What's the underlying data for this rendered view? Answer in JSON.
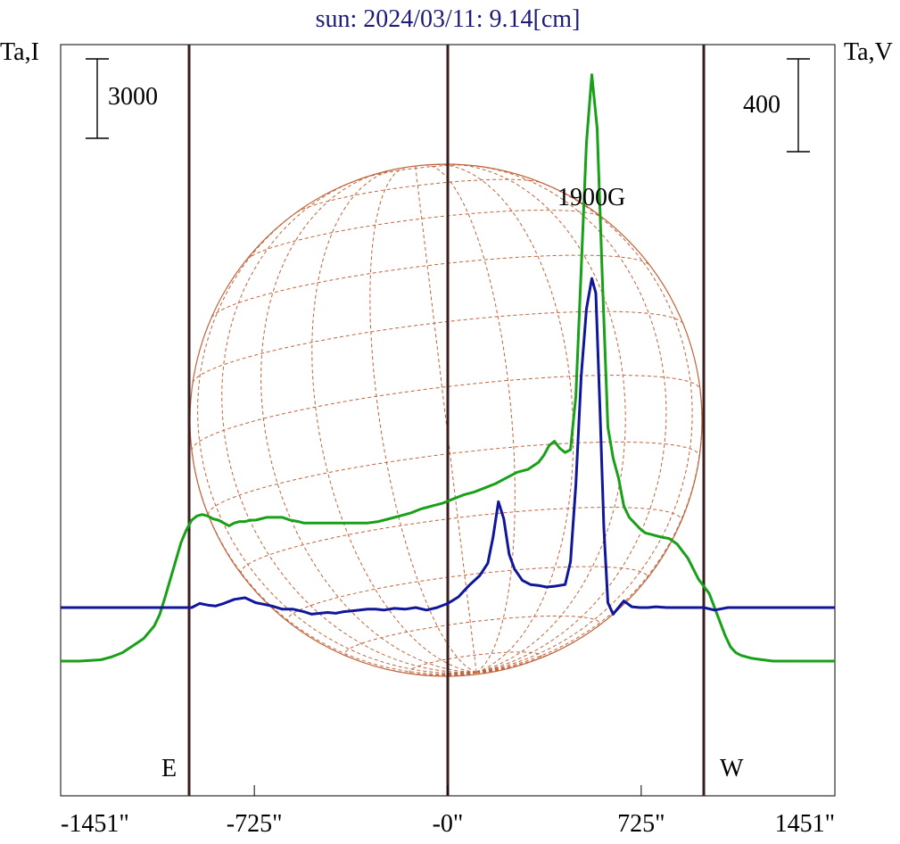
{
  "chart_data": {
    "type": "line",
    "title": "sun: 2024/03/11: 9.14[cm]",
    "left_axis_label": "Ta,I",
    "right_axis_label": "Ta,V",
    "left_scale_bar_label": "3000",
    "right_scale_bar_label": "400",
    "annotation": "1900G",
    "east_label": "E",
    "west_label": "W",
    "x_tick_labels": [
      "-1451\"",
      "-725\"",
      "-0\"",
      "725\"",
      "1451\""
    ],
    "x_tick_values": [
      -1451,
      -725,
      0,
      725,
      1451
    ],
    "xlim": [
      -1451,
      1451
    ],
    "solar_limb_x": [
      -965,
      965
    ],
    "colors": {
      "title": "#1c1c78",
      "intensity": "#10169a",
      "polarization": "#18a018",
      "limb_lines": "#3a1e1e",
      "sun_grid": "#c0643c",
      "text": "#000000"
    },
    "series": [
      {
        "key": "intensity",
        "stroke": "#10169a",
        "x": [
          -1451,
          -1300,
          -1200,
          -1100,
          -1030,
          -990,
          -960,
          -930,
          -900,
          -870,
          -840,
          -800,
          -760,
          -720,
          -690,
          -660,
          -620,
          -580,
          -540,
          -510,
          -480,
          -450,
          -420,
          -390,
          -360,
          -330,
          -300,
          -270,
          -240,
          -200,
          -160,
          -120,
          -80,
          -40,
          0,
          40,
          80,
          120,
          150,
          170,
          190,
          210,
          230,
          250,
          280,
          310,
          340,
          370,
          400,
          420,
          440,
          460,
          480,
          500,
          520,
          540,
          555,
          570,
          585,
          600,
          620,
          640,
          660,
          690,
          720,
          750,
          780,
          820,
          860,
          900,
          960,
          1000,
          1050,
          1100,
          1200,
          1300,
          1400,
          1451
        ],
        "y": [
          0,
          0,
          0,
          0,
          0,
          0,
          0,
          5,
          3,
          2,
          5,
          10,
          12,
          6,
          4,
          2,
          -2,
          -2,
          -5,
          -8,
          -7,
          -6,
          -7,
          -5,
          -4,
          -3,
          -2,
          -2,
          -3,
          -1,
          -2,
          0,
          -3,
          0,
          5,
          13,
          27,
          39,
          54,
          86,
          129,
          108,
          65,
          47,
          33,
          28,
          27,
          25,
          26,
          27,
          28,
          56,
          150,
          282,
          364,
          401,
          383,
          246,
          97,
          6,
          -8,
          0,
          8,
          1,
          0,
          0,
          1,
          0,
          0,
          0,
          0,
          -3,
          0,
          0,
          0,
          0,
          0,
          0
        ]
      },
      {
        "key": "polarization",
        "stroke": "#18a018",
        "x": [
          -1451,
          -1380,
          -1300,
          -1260,
          -1220,
          -1180,
          -1140,
          -1100,
          -1080,
          -1060,
          -1040,
          -1020,
          -1000,
          -980,
          -960,
          -940,
          -920,
          -900,
          -880,
          -860,
          -840,
          -820,
          -800,
          -780,
          -760,
          -740,
          -720,
          -700,
          -680,
          -650,
          -620,
          -590,
          -560,
          -540,
          -500,
          -460,
          -420,
          -380,
          -340,
          -300,
          -260,
          -220,
          -180,
          -140,
          -100,
          -60,
          -20,
          20,
          60,
          100,
          140,
          180,
          220,
          260,
          300,
          340,
          360,
          380,
          400,
          420,
          440,
          460,
          480,
          500,
          520,
          540,
          560,
          580,
          600,
          620,
          640,
          660,
          680,
          700,
          720,
          740,
          760,
          780,
          800,
          830,
          860,
          900,
          940,
          980,
          1000,
          1020,
          1040,
          1060,
          1080,
          1100,
          1140,
          1180,
          1220,
          1300,
          1380,
          1451
        ],
        "y": [
          -38,
          -38,
          -37,
          -35,
          -32,
          -27,
          -22,
          -13,
          -5,
          7,
          20,
          33,
          46,
          55,
          62,
          65,
          66,
          65,
          63,
          62,
          60,
          58,
          60,
          61,
          61,
          62,
          62,
          63,
          64,
          64,
          64,
          62,
          61,
          60,
          60,
          60,
          60,
          60,
          60,
          60,
          61,
          63,
          65,
          67,
          70,
          72,
          74,
          77,
          80,
          82,
          85,
          88,
          92,
          96,
          98,
          103,
          108,
          115,
          118,
          113,
          110,
          112,
          150,
          240,
          330,
          378,
          340,
          230,
          128,
          106,
          92,
          72,
          64,
          60,
          56,
          53,
          52,
          51,
          50,
          49,
          45,
          35,
          20,
          10,
          0,
          -10,
          -20,
          -28,
          -32,
          -34,
          -36,
          -37,
          -38,
          -38,
          -38,
          -38
        ]
      }
    ]
  }
}
